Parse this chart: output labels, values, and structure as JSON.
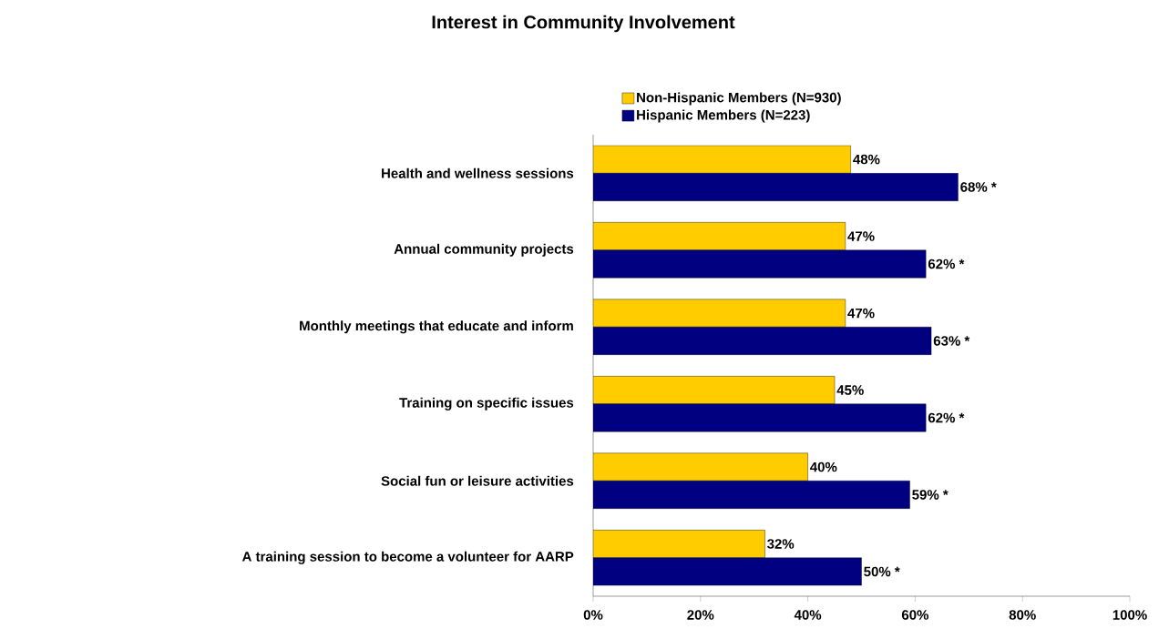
{
  "chart_data": {
    "type": "bar",
    "orientation": "horizontal",
    "title": "Interest in Community Involvement",
    "categories": [
      "Health and wellness sessions",
      "Annual community projects",
      "Monthly meetings that educate and inform",
      "Training on specific issues",
      "Social fun or leisure activities",
      "A training session to become a volunteer for AARP"
    ],
    "series": [
      {
        "name": "Non-Hispanic Members (N=930)",
        "color": "#ffcc00",
        "values": [
          48,
          47,
          47,
          45,
          40,
          32
        ],
        "value_labels": [
          "48%",
          "47%",
          "47%",
          "45%",
          "40%",
          "32%"
        ]
      },
      {
        "name": "Hispanic Members (N=223)",
        "color": "#000080",
        "values": [
          68,
          62,
          63,
          62,
          59,
          50
        ],
        "value_labels": [
          "68% *",
          "62% *",
          "63% *",
          "62% *",
          "59% *",
          "50% *"
        ]
      }
    ],
    "xlim": [
      0,
      100
    ],
    "xticks": [
      {
        "value": 0,
        "label": "0%"
      },
      {
        "value": 20,
        "label": "20%"
      },
      {
        "value": 40,
        "label": "40%"
      },
      {
        "value": 60,
        "label": "60%"
      },
      {
        "value": 80,
        "label": "80%"
      },
      {
        "value": 100,
        "label": "100%"
      }
    ],
    "legend": "top",
    "grid": false
  }
}
